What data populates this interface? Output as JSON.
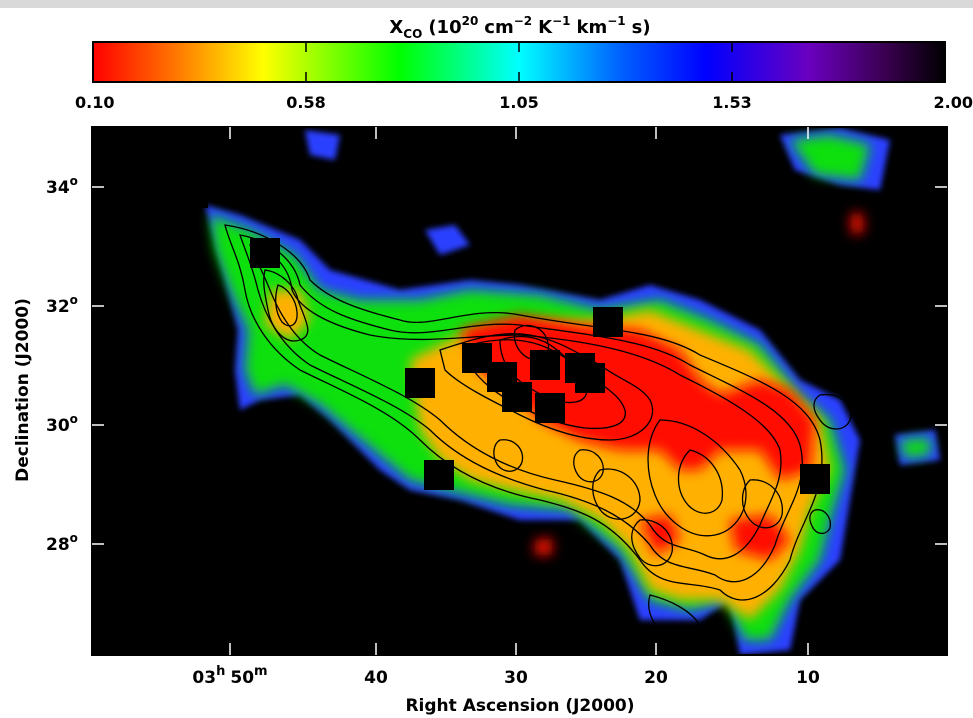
{
  "chart_data": {
    "type": "heatmap",
    "title": "",
    "colorbar": {
      "label_main": "X",
      "label_sub": "CO",
      "label_rest": "(10",
      "label_exp1": "20",
      "label_cm": "cm",
      "label_exp2": "−2",
      "label_K": "K",
      "label_exp3": "−1",
      "label_km": "km",
      "label_exp4": "−1",
      "label_s": "s)",
      "ticks": [
        "0.10",
        "0.58",
        "1.05",
        "1.53",
        "2.00"
      ],
      "range": [
        0.1,
        2.0
      ],
      "colors": [
        "#ff0000",
        "#ff8000",
        "#ffff00",
        "#00ff00",
        "#00ffff",
        "#0060ff",
        "#0000ff",
        "#6000c0",
        "#400060",
        "#000000"
      ]
    },
    "xaxis": {
      "label": "Right Ascension (J2000)",
      "ticks": [
        {
          "major": "03",
          "h": "h",
          "min": "50",
          "m": "m"
        },
        {
          "text": "40"
        },
        {
          "text": "30"
        },
        {
          "text": "20"
        },
        {
          "text": "10"
        }
      ]
    },
    "yaxis": {
      "label": "Declination (J2000)",
      "ticks": [
        "34",
        "32",
        "30",
        "28"
      ],
      "deg": "o"
    },
    "background": "#000000",
    "has_contours": true
  }
}
